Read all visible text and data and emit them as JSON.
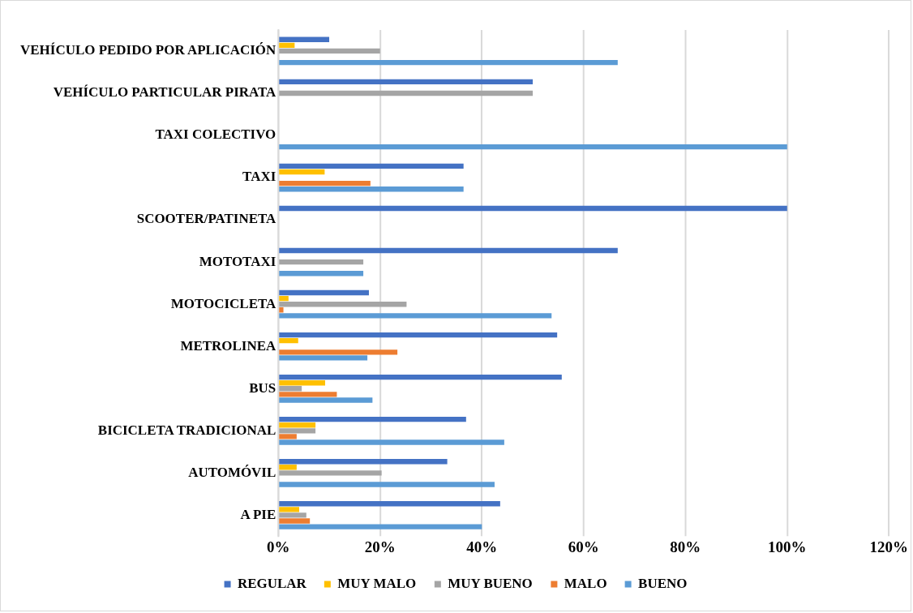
{
  "chart_data": {
    "type": "bar",
    "orientation": "horizontal",
    "categories": [
      "VEHÍCULO PEDIDO POR APLICACIÓN",
      "VEHÍCULO PARTICULAR PIRATA",
      "TAXI COLECTIVO",
      "TAXI",
      "SCOOTER/PATINETA",
      "MOTOTAXI",
      "MOTOCICLETA",
      "METROLINEA",
      "BUS",
      "BICICLETA TRADICIONAL",
      "AUTOMÓVIL",
      "A PIE"
    ],
    "series": [
      {
        "name": "REGULAR",
        "color": "#4472c4",
        "values": [
          10,
          50,
          null,
          36.4,
          100,
          66.7,
          17.8,
          54.8,
          55.7,
          36.9,
          33.2,
          43.6
        ]
      },
      {
        "name": "MUY MALO",
        "color": "#ffc000",
        "values": [
          3.2,
          null,
          null,
          9.1,
          null,
          null,
          2,
          3.9,
          9.2,
          7.3,
          3.6,
          4.1
        ]
      },
      {
        "name": "MUY BUENO",
        "color": "#a5a5a5",
        "values": [
          20,
          50,
          null,
          null,
          null,
          16.7,
          25.2,
          null,
          4.6,
          7.3,
          20.3,
          5.5
        ]
      },
      {
        "name": "MALO",
        "color": "#ed7d31",
        "values": [
          null,
          null,
          null,
          18.1,
          null,
          null,
          1,
          23.4,
          11.5,
          3.6,
          null,
          6.2
        ]
      },
      {
        "name": "BUENO",
        "color": "#5b9bd5",
        "values": [
          66.7,
          null,
          100,
          36.4,
          null,
          16.7,
          53.7,
          17.5,
          18.5,
          44.4,
          42.5,
          40
        ]
      }
    ],
    "xlim": [
      0,
      120
    ],
    "xticks": [
      {
        "value": 0,
        "label": "0%"
      },
      {
        "value": 20,
        "label": "20%"
      },
      {
        "value": 40,
        "label": "40%"
      },
      {
        "value": 60,
        "label": "60%"
      },
      {
        "value": 80,
        "label": "80%"
      },
      {
        "value": 100,
        "label": "100%"
      },
      {
        "value": 120,
        "label": "120%"
      }
    ],
    "grid": "x",
    "legend": "bottom"
  }
}
